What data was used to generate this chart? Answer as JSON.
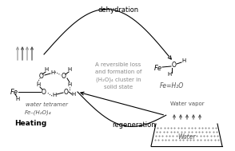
{
  "bg_color": "#ffffff",
  "dehydration_label": "dehydration",
  "regeneration_label": "regeneration",
  "center_text_lines": [
    "A reversible loss",
    "and formation of",
    "(H₂O)₄ cluster in",
    "solid state"
  ],
  "label_water_tetramer": "water tetramer",
  "label_formula": "Fe–(H₂O)₄",
  "label_heating": "Heating",
  "label_fe_h2o": "Fe=H₂O",
  "water_label": "Water",
  "vapor_label": "Water vapor",
  "arrow_color": "#444444",
  "text_color_center": "#888888",
  "text_color_label": "#555555"
}
